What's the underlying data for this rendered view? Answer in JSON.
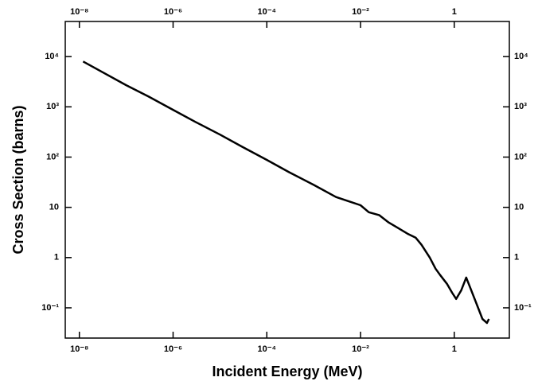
{
  "chart_data": {
    "type": "line",
    "xlabel": "Incident Energy (MeV)",
    "ylabel": "Cross Section (barns)",
    "xscale": "log",
    "yscale": "log",
    "xlim": [
      5e-09,
      15
    ],
    "ylim": [
      0.025,
      50000
    ],
    "xticks": [
      {
        "value": 1e-08,
        "label": "10⁻⁸"
      },
      {
        "value": 1e-06,
        "label": "10⁻⁶"
      },
      {
        "value": 0.0001,
        "label": "10⁻⁴"
      },
      {
        "value": 0.01,
        "label": "10⁻²"
      },
      1
    ],
    "yticks": [
      {
        "value": 0.1,
        "label": "10⁻¹"
      },
      1,
      10,
      {
        "value": 100,
        "label": "10²"
      },
      {
        "value": 1000,
        "label": "10³"
      },
      {
        "value": 10000,
        "label": "10⁴"
      }
    ],
    "x": [
      1.2e-08,
      3e-08,
      1e-07,
      3e-07,
      1e-06,
      3e-06,
      1e-05,
      3e-05,
      0.0001,
      0.0003,
      0.001,
      0.003,
      0.01,
      0.015,
      0.025,
      0.04,
      0.06,
      0.1,
      0.15,
      0.2,
      0.3,
      0.4,
      0.5,
      0.7,
      0.9,
      1.1,
      1.4,
      1.8,
      2.2,
      3,
      4,
      5,
      5.5
    ],
    "series": [
      {
        "color": "#000000",
        "values": [
          8000,
          5000,
          2700,
          1600,
          870,
          500,
          280,
          160,
          88,
          50,
          28,
          16,
          11,
          8,
          7,
          5,
          4,
          3.0,
          2.5,
          1.8,
          1.0,
          0.6,
          0.45,
          0.3,
          0.2,
          0.15,
          0.22,
          0.4,
          0.25,
          0.12,
          0.06,
          0.05,
          0.06
        ]
      }
    ]
  }
}
